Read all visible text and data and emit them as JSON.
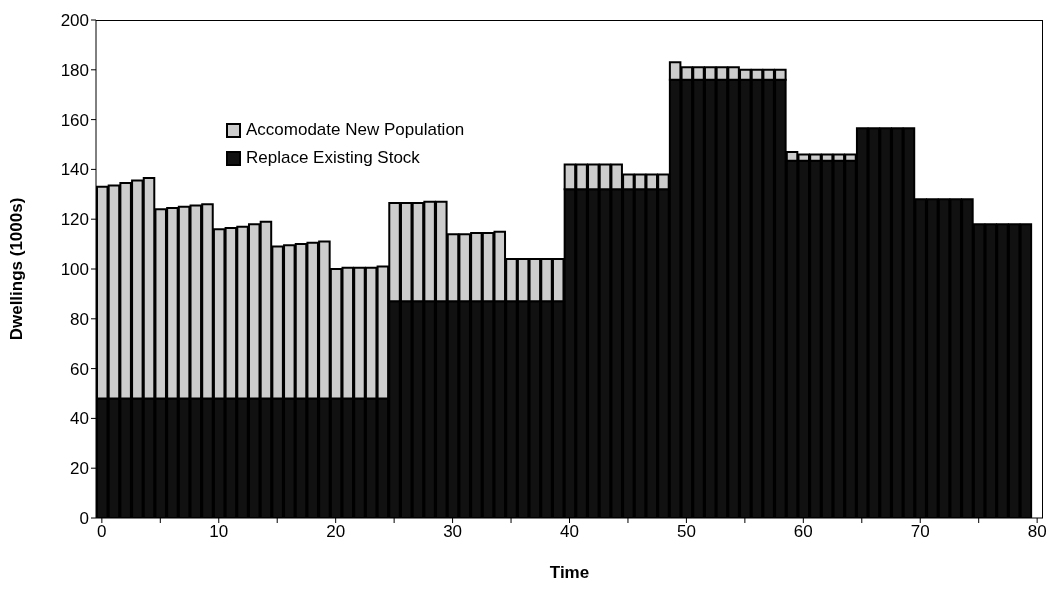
{
  "chart_data": {
    "type": "bar",
    "stacked": true,
    "xlabel": "Time",
    "ylabel": "Dwellings (1000s)",
    "x": [
      0,
      1,
      2,
      3,
      4,
      5,
      6,
      7,
      8,
      9,
      10,
      11,
      12,
      13,
      14,
      15,
      16,
      17,
      18,
      19,
      20,
      21,
      22,
      23,
      24,
      25,
      26,
      27,
      28,
      29,
      30,
      31,
      32,
      33,
      34,
      35,
      36,
      37,
      38,
      39,
      40,
      41,
      42,
      43,
      44,
      45,
      46,
      47,
      48,
      49,
      50,
      51,
      52,
      53,
      54,
      55,
      56,
      57,
      58,
      59,
      60,
      61,
      62,
      63,
      64,
      65,
      66,
      67,
      68,
      69,
      70,
      71,
      72,
      73,
      74,
      75,
      76,
      77,
      78,
      79
    ],
    "series": [
      {
        "name": "Replace Existing Stock",
        "color": "#111111",
        "values": [
          48,
          48,
          48,
          48,
          48,
          48,
          48,
          48,
          48,
          48,
          48,
          48,
          48,
          48,
          48,
          48,
          48,
          48,
          48,
          48,
          48,
          48,
          48,
          48,
          48,
          87,
          87,
          87,
          87,
          87,
          87,
          87,
          87,
          87,
          87,
          87,
          87,
          87,
          87,
          87,
          132,
          132,
          132,
          132,
          132,
          132,
          132,
          132,
          132,
          176,
          176,
          176,
          176,
          176,
          176,
          176,
          176,
          176,
          176,
          143.5,
          143.5,
          143.5,
          143.5,
          143.5,
          143.5,
          156.5,
          156.5,
          156.5,
          156.5,
          156.5,
          128,
          128,
          128,
          128,
          128,
          118,
          118,
          118,
          118,
          118
        ]
      },
      {
        "name": "Accomodate New Population",
        "color": "#cccccc",
        "values": [
          85,
          85.5,
          86.5,
          87.5,
          88.5,
          76,
          76.5,
          77,
          77.5,
          78,
          68,
          68.5,
          69,
          70,
          71,
          61,
          61.5,
          62,
          62.5,
          63,
          52,
          52.5,
          52.5,
          52.5,
          53,
          39.5,
          39.5,
          39.5,
          40,
          40,
          27,
          27,
          27.5,
          27.5,
          28,
          17,
          17,
          17,
          17,
          17,
          10,
          10,
          10,
          10,
          10,
          6,
          6,
          6,
          6,
          7,
          5,
          5,
          5,
          5,
          5,
          4,
          4,
          4,
          4,
          3.5,
          2.5,
          2.5,
          2.5,
          2.5,
          2.5,
          0,
          0,
          0,
          0,
          0,
          0,
          0,
          0,
          0,
          0,
          0,
          0,
          0,
          0,
          0
        ]
      }
    ],
    "xlim": [
      -0.5,
      80.5
    ],
    "xticks": [
      0,
      {
        "value": 5,
        "label": null
      },
      10,
      {
        "value": 15,
        "label": null
      },
      20,
      {
        "value": 25,
        "label": null
      },
      30,
      {
        "value": 35,
        "label": null
      },
      40,
      {
        "value": 45,
        "label": null
      },
      50,
      {
        "value": 55,
        "label": null
      },
      60,
      {
        "value": 65,
        "label": null
      },
      70,
      {
        "value": 75,
        "label": null
      },
      80
    ],
    "ylim": [
      0,
      200
    ],
    "yticks": [
      0,
      20,
      40,
      60,
      80,
      100,
      120,
      140,
      160,
      180,
      200
    ],
    "legend": "top left"
  }
}
